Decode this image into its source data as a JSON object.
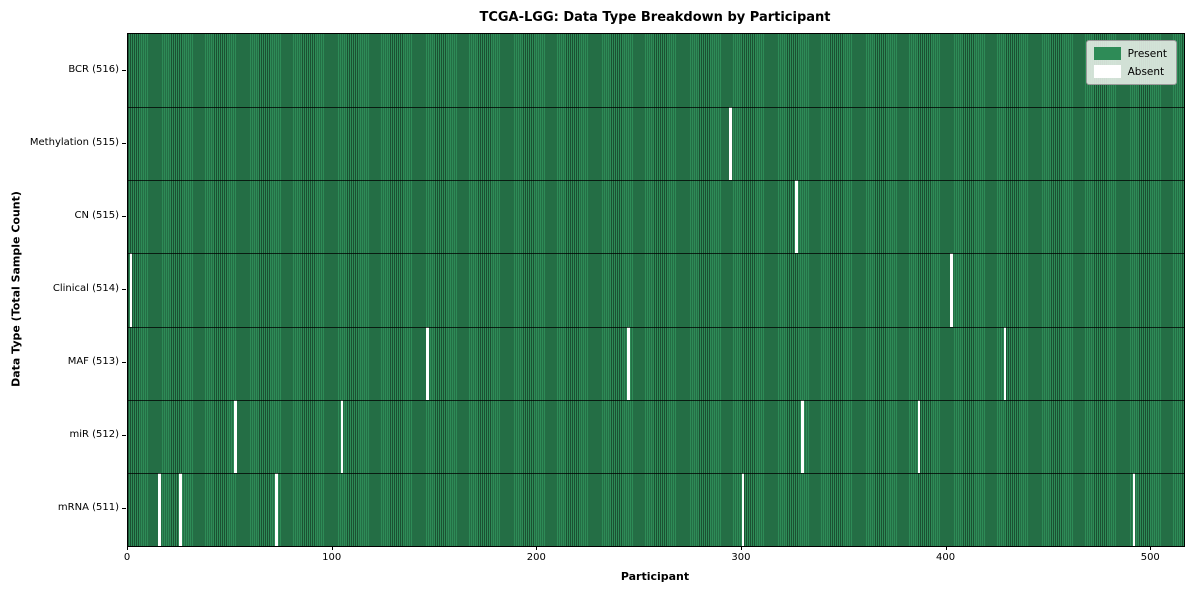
{
  "figure": {
    "title": "TCGA-LGG: Data Type Breakdown by Participant",
    "xlabel": "Participant",
    "ylabel": "Data Type (Total Sample Count)"
  },
  "legend": {
    "items": [
      {
        "name": "present",
        "label": "Present",
        "color": "#2e8b57"
      },
      {
        "name": "absent",
        "label": "Absent",
        "color": "#ffffff"
      }
    ]
  },
  "chart_data": {
    "type": "heatmap",
    "title": "TCGA-LGG: Data Type Breakdown by Participant",
    "xlabel": "Participant",
    "ylabel": "Data Type (Total Sample Count)",
    "x_ticks": [
      0,
      100,
      200,
      300,
      400,
      500
    ],
    "xlim": [
      0,
      516
    ],
    "total_participants": 516,
    "grid": false,
    "legend_position": "upper right",
    "legend_entries": [
      "Present",
      "Absent"
    ],
    "colors": {
      "present": "#2e8b57",
      "absent": "#ffffff",
      "bar_edge": "rgba(0,0,0,0.42)",
      "row_separator": "rgba(0,0,0,0.75)"
    },
    "rows": [
      {
        "label": "BCR (516)",
        "data_type": "BCR",
        "present_count": 516,
        "absent_participants": []
      },
      {
        "label": "Methylation (515)",
        "data_type": "Methylation",
        "present_count": 515,
        "absent_participants": [
          294
        ]
      },
      {
        "label": "CN (515)",
        "data_type": "CN",
        "present_count": 515,
        "absent_participants": [
          326
        ]
      },
      {
        "label": "Clinical (514)",
        "data_type": "Clinical",
        "present_count": 514,
        "absent_participants": [
          1,
          402
        ]
      },
      {
        "label": "MAF (513)",
        "data_type": "MAF",
        "present_count": 513,
        "absent_participants": [
          146,
          244,
          428
        ]
      },
      {
        "label": "miR (512)",
        "data_type": "miR",
        "present_count": 512,
        "absent_participants": [
          52,
          104,
          329,
          386
        ]
      },
      {
        "label": "mRNA (511)",
        "data_type": "mRNA",
        "present_count": 511,
        "absent_participants": [
          15,
          25,
          72,
          300,
          491
        ]
      }
    ]
  }
}
